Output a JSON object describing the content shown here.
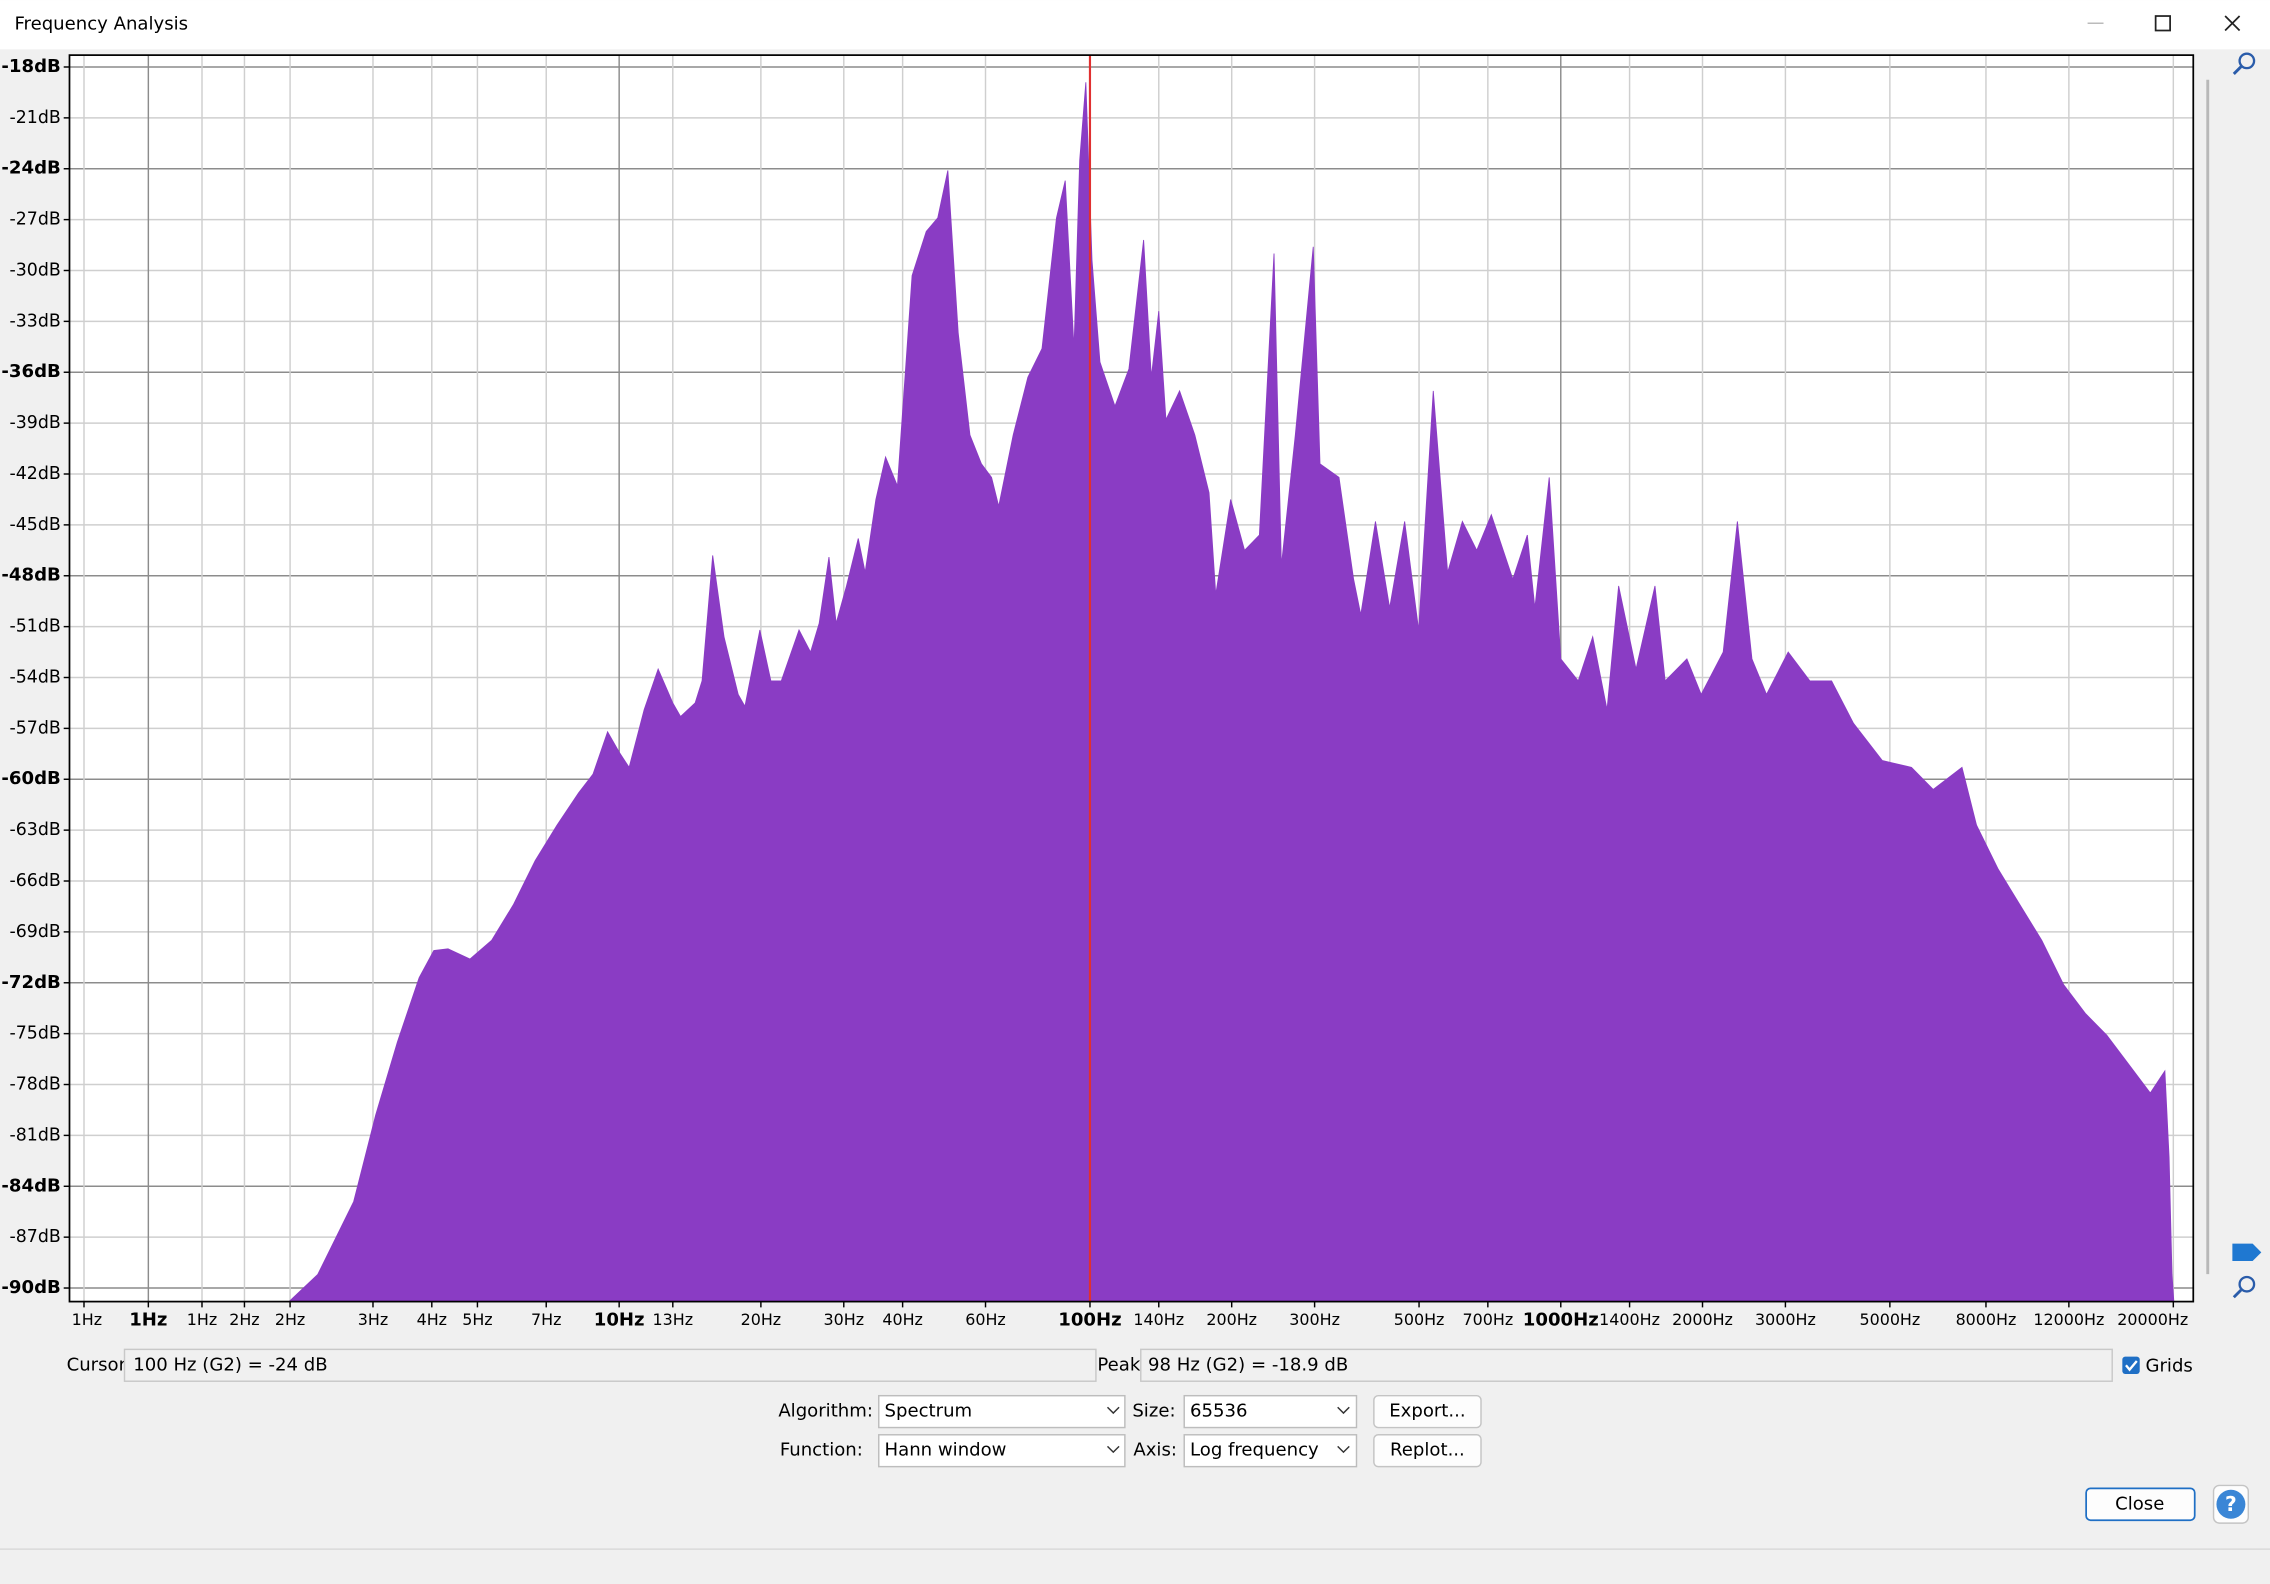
{
  "window": {
    "title": "Frequency Analysis"
  },
  "chart_data": {
    "type": "area",
    "log_x": true,
    "color": "#8a3cc4",
    "grid": true,
    "cursor_x": 100,
    "cursor_color": "#e03030",
    "xlim": [
      0.68,
      22050
    ],
    "ylim": [
      -90.8,
      -17.3
    ],
    "xticks": [
      {
        "value": 0.73,
        "label": "1Hz"
      },
      {
        "value": 1,
        "label": "1Hz"
      },
      {
        "value": 1.3,
        "label": "1Hz"
      },
      {
        "value": 1.6,
        "label": "2Hz"
      },
      {
        "value": 2,
        "label": "2Hz"
      },
      {
        "value": 3,
        "label": "3Hz"
      },
      {
        "value": 4,
        "label": "4Hz"
      },
      {
        "value": 5,
        "label": "5Hz"
      },
      {
        "value": 7,
        "label": "7Hz"
      },
      {
        "value": 10,
        "label": "10Hz"
      },
      {
        "value": 13,
        "label": "13Hz"
      },
      {
        "value": 20,
        "label": "20Hz"
      },
      {
        "value": 30,
        "label": "30Hz"
      },
      {
        "value": 40,
        "label": "40Hz"
      },
      {
        "value": 60,
        "label": "60Hz"
      },
      {
        "value": 100,
        "label": "100Hz"
      },
      {
        "value": 140,
        "label": "140Hz"
      },
      {
        "value": 200,
        "label": "200Hz"
      },
      {
        "value": 300,
        "label": "300Hz"
      },
      {
        "value": 500,
        "label": "500Hz"
      },
      {
        "value": 700,
        "label": "700Hz"
      },
      {
        "value": 1000,
        "label": "1000Hz"
      },
      {
        "value": 1400,
        "label": "1400Hz"
      },
      {
        "value": 2000,
        "label": "2000Hz"
      },
      {
        "value": 3000,
        "label": "3000Hz"
      },
      {
        "value": 5000,
        "label": "5000Hz"
      },
      {
        "value": 8000,
        "label": "8000Hz"
      },
      {
        "value": 12000,
        "label": "12000Hz"
      },
      {
        "value": 20000,
        "label": "20000Hz"
      }
    ],
    "yticks": [
      {
        "value": -18,
        "label": "-18dB"
      },
      {
        "value": -21,
        "label": "-21dB"
      },
      {
        "value": -24,
        "label": "-24dB"
      },
      {
        "value": -27,
        "label": "-27dB"
      },
      {
        "value": -30,
        "label": "-30dB"
      },
      {
        "value": -33,
        "label": "-33dB"
      },
      {
        "value": -36,
        "label": "-36dB"
      },
      {
        "value": -39,
        "label": "-39dB"
      },
      {
        "value": -42,
        "label": "-42dB"
      },
      {
        "value": -45,
        "label": "-45dB"
      },
      {
        "value": -48,
        "label": "-48dB"
      },
      {
        "value": -51,
        "label": "-51dB"
      },
      {
        "value": -54,
        "label": "-54dB"
      },
      {
        "value": -57,
        "label": "-57dB"
      },
      {
        "value": -60,
        "label": "-60dB"
      },
      {
        "value": -63,
        "label": "-63dB"
      },
      {
        "value": -66,
        "label": "-66dB"
      },
      {
        "value": -69,
        "label": "-69dB"
      },
      {
        "value": -72,
        "label": "-72dB"
      },
      {
        "value": -75,
        "label": "-75dB"
      },
      {
        "value": -78,
        "label": "-78dB"
      },
      {
        "value": -81,
        "label": "-81dB"
      },
      {
        "value": -84,
        "label": "-84dB"
      },
      {
        "value": -87,
        "label": "-87dB"
      },
      {
        "value": -90,
        "label": "-90dB"
      }
    ],
    "x": [
      1.99,
      2.29,
      2.73,
      3.04,
      3.38,
      3.76,
      4.04,
      4.33,
      4.82,
      5.36,
      5.96,
      6.63,
      7.38,
      8.2,
      8.8,
      9.45,
      10,
      10.5,
      11.3,
      12.1,
      13.0,
      13.5,
      14.5,
      15.0,
      15.8,
      16.7,
      17.9,
      18.5,
      19.9,
      21.0,
      22.1,
      24.1,
      25.5,
      26.6,
      27.9,
      28.9,
      30.4,
      32.2,
      33.3,
      35.1,
      36.8,
      39.0,
      41.9,
      44.9,
      47.5,
      49.9,
      52.5,
      55.6,
      58.8,
      61.8,
      64.0,
      68.7,
      73.8,
      79.1,
      84.9,
      88.6,
      92.5,
      95.1,
      98,
      101,
      105,
      113,
      121,
      130,
      135,
      140,
      145,
      155,
      167,
      179,
      185,
      199,
      213,
      229,
      246,
      255,
      273,
      298,
      308,
      338,
      363,
      376,
      404,
      433,
      466,
      499,
      536,
      575,
      618,
      663,
      712,
      791,
      849,
      881,
      945,
      1000,
      1089,
      1169,
      1254,
      1327,
      1445,
      1585,
      1666,
      1853,
      1987,
      2213,
      2372,
      2547,
      2735,
      3041,
      3381,
      3760,
      4185,
      4820,
      5557,
      6180,
      7115,
      7638,
      8492,
      9444,
      10510,
      11690,
      13000,
      14450,
      16070,
      17870,
      19190,
      19590,
      19870,
      20050
    ],
    "values": [
      -90.8,
      -89.2,
      -84.9,
      -79.8,
      -75.5,
      -71.7,
      -70.1,
      -70.0,
      -70.6,
      -69.5,
      -67.4,
      -64.8,
      -62.7,
      -60.8,
      -59.7,
      -57.2,
      -58.4,
      -59.3,
      -55.9,
      -53.5,
      -55.5,
      -56.3,
      -55.5,
      -54.2,
      -46.8,
      -51.6,
      -55.0,
      -55.7,
      -51.2,
      -54.2,
      -54.2,
      -51.2,
      -52.5,
      -50.8,
      -46.9,
      -50.8,
      -48.6,
      -45.8,
      -47.8,
      -43.5,
      -41.0,
      -42.7,
      -30.3,
      -27.7,
      -26.9,
      -24.1,
      -33.7,
      -39.7,
      -41.4,
      -42.2,
      -43.9,
      -39.7,
      -36.3,
      -34.6,
      -26.9,
      -24.7,
      -34.6,
      -23.5,
      -18.9,
      -29.4,
      -35.4,
      -38.0,
      -35.8,
      -28.2,
      -36.3,
      -32.4,
      -38.8,
      -37.1,
      -39.7,
      -43.1,
      -49.1,
      -43.5,
      -46.5,
      -45.6,
      -29.0,
      -47.4,
      -39.7,
      -28.6,
      -41.4,
      -42.2,
      -48.2,
      -50.3,
      -44.8,
      -49.9,
      -44.8,
      -51.2,
      -37.1,
      -47.8,
      -44.8,
      -46.5,
      -44.4,
      -48.2,
      -45.6,
      -49.9,
      -42.2,
      -52.9,
      -54.2,
      -51.6,
      -55.9,
      -48.6,
      -53.5,
      -48.6,
      -54.2,
      -52.9,
      -55.0,
      -52.5,
      -44.8,
      -52.9,
      -55.0,
      -52.5,
      -54.2,
      -54.2,
      -56.7,
      -58.9,
      -59.3,
      -60.6,
      -59.3,
      -62.7,
      -65.3,
      -67.4,
      -69.5,
      -72.1,
      -73.8,
      -75.1,
      -76.8,
      -78.5,
      -77.2,
      -82.3,
      -89.2,
      -90.8
    ]
  },
  "cursor": {
    "label": "Cursor:",
    "value": "100 Hz (G2) = -24 dB"
  },
  "peak": {
    "label": "Peak:",
    "value": "98 Hz (G2) = -18.9 dB"
  },
  "grids_label": "Grids",
  "controls": {
    "algorithm": {
      "label": "Algorithm:",
      "value": "Spectrum"
    },
    "size": {
      "label": "Size:",
      "value": "65536"
    },
    "function": {
      "label": "Function:",
      "value": "Hann window"
    },
    "axis": {
      "label": "Axis:",
      "value": "Log frequency"
    }
  },
  "buttons": {
    "export": "Export...",
    "replot": "Replot...",
    "close": "Close",
    "help": "?"
  }
}
